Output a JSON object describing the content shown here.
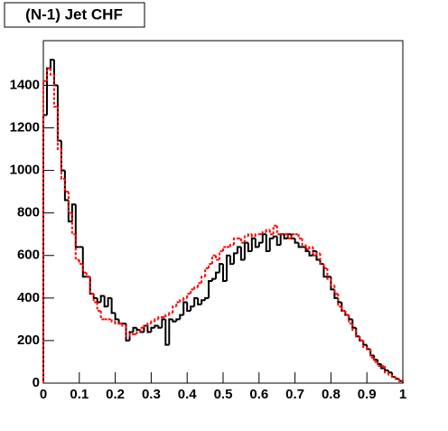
{
  "chart_data": {
    "type": "histogram",
    "title": "(N-1) Jet CHF",
    "bins": [
      0,
      0.01,
      0.02,
      0.03,
      0.04,
      0.05,
      0.06,
      0.07,
      0.08,
      0.09,
      0.1,
      0.11,
      0.12,
      0.13,
      0.14,
      0.15,
      0.16,
      0.17,
      0.18,
      0.19,
      0.2,
      0.21,
      0.22,
      0.23,
      0.24,
      0.25,
      0.26,
      0.27,
      0.28,
      0.29,
      0.3,
      0.31,
      0.32,
      0.33,
      0.34,
      0.35,
      0.36,
      0.37,
      0.38,
      0.39,
      0.4,
      0.41,
      0.42,
      0.43,
      0.44,
      0.45,
      0.46,
      0.47,
      0.48,
      0.49,
      0.5,
      0.51,
      0.52,
      0.53,
      0.54,
      0.55,
      0.56,
      0.57,
      0.58,
      0.59,
      0.6,
      0.61,
      0.62,
      0.63,
      0.64,
      0.65,
      0.66,
      0.67,
      0.68,
      0.69,
      0.7,
      0.71,
      0.72,
      0.73,
      0.74,
      0.75,
      0.76,
      0.77,
      0.78,
      0.79,
      0.8,
      0.81,
      0.82,
      0.83,
      0.84,
      0.85,
      0.86,
      0.87,
      0.88,
      0.89,
      0.9,
      0.91,
      0.92,
      0.93,
      0.94,
      0.95,
      0.96,
      0.97,
      0.98,
      0.99,
      1
    ],
    "series": [
      {
        "color": "#000000",
        "style": "solid",
        "values": [
          1260,
          1480,
          1520,
          1400,
          1140,
          1000,
          860,
          760,
          840,
          640,
          640,
          500,
          500,
          420,
          400,
          380,
          410,
          360,
          400,
          330,
          300,
          280,
          280,
          200,
          240,
          260,
          250,
          240,
          270,
          240,
          260,
          270,
          260,
          300,
          180,
          300,
          290,
          300,
          320,
          380,
          340,
          360,
          400,
          370,
          390,
          400,
          480,
          490,
          520,
          560,
          480,
          600,
          560,
          610,
          640,
          580,
          660,
          620,
          680,
          640,
          660,
          700,
          620,
          680,
          690,
          650,
          700,
          680,
          700,
          680,
          660,
          640,
          640,
          620,
          600,
          620,
          580,
          560,
          500,
          500,
          440,
          400,
          380,
          340,
          320,
          300,
          260,
          220,
          200,
          180,
          160,
          130,
          110,
          90,
          70,
          60,
          50,
          30,
          20,
          10
        ]
      },
      {
        "color": "#ff0000",
        "style": "dashed",
        "values": [
          1420,
          1480,
          1450,
          1300,
          1100,
          960,
          900,
          800,
          700,
          580,
          560,
          520,
          500,
          420,
          380,
          340,
          300,
          300,
          300,
          290,
          280,
          280,
          270,
          220,
          230,
          230,
          240,
          260,
          270,
          280,
          290,
          300,
          310,
          310,
          320,
          330,
          360,
          380,
          390,
          400,
          420,
          440,
          450,
          470,
          500,
          540,
          560,
          600,
          580,
          620,
          640,
          640,
          650,
          680,
          680,
          660,
          690,
          700,
          690,
          700,
          700,
          710,
          720,
          700,
          740,
          700,
          700,
          700,
          680,
          700,
          700,
          680,
          650,
          630,
          640,
          600,
          610,
          560,
          540,
          490,
          460,
          420,
          360,
          340,
          320,
          280,
          250,
          220,
          200,
          170,
          160,
          120,
          100,
          80,
          80,
          50,
          40,
          30,
          20,
          10
        ]
      }
    ],
    "xlim": [
      0,
      1
    ],
    "xticks": [
      0,
      0.1,
      0.2,
      0.3,
      0.4,
      0.5,
      0.6,
      0.7,
      0.8,
      0.9,
      1
    ],
    "ylim": [
      0,
      1610
    ],
    "yticks": [
      0,
      200,
      400,
      600,
      800,
      1000,
      1200,
      1400
    ]
  }
}
